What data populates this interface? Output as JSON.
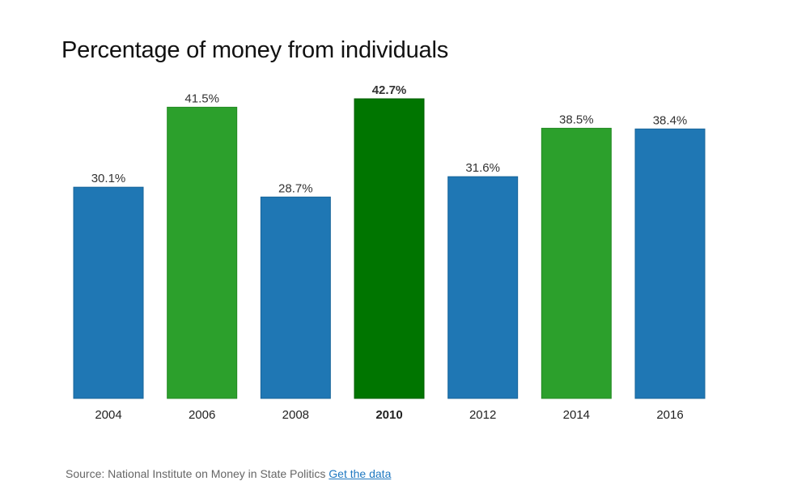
{
  "colors": {
    "blue": "#1f77b4",
    "blue_stroke": "#17649a",
    "green": "#2ca02c",
    "green_stroke": "#238a23",
    "highlight": "#007500",
    "highlight_stroke": "#005f00"
  },
  "chart_data": {
    "type": "bar",
    "title": "Percentage of money from individuals",
    "xlabel": "",
    "ylabel": "",
    "ylim": [
      0,
      42.7
    ],
    "grid": false,
    "categories": [
      "2004",
      "2006",
      "2008",
      "2010",
      "2012",
      "2014",
      "2016"
    ],
    "values": [
      30.1,
      41.5,
      28.7,
      42.7,
      31.6,
      38.5,
      38.4
    ],
    "value_labels": [
      "30.1%",
      "41.5%",
      "28.7%",
      "42.7%",
      "31.6%",
      "38.5%",
      "38.4%"
    ],
    "bar_colors": [
      "blue",
      "green",
      "blue",
      "highlight",
      "blue",
      "green",
      "blue"
    ],
    "highlighted_category": "2010"
  },
  "footer": {
    "source_text": "Source: National Institute on Money in State Politics",
    "link_text": "Get the data"
  }
}
